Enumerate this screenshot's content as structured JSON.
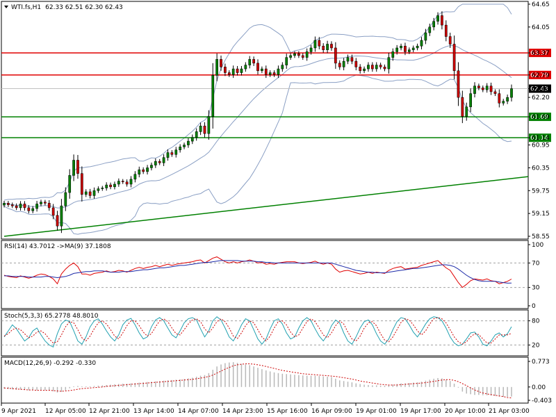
{
  "window": {
    "symbol_title": "WTI.fs,H1",
    "ohlc": "62.33 62.51 62.30 62.43"
  },
  "colors": {
    "resistance": "#e00000",
    "support": "#008000",
    "bollinger": "#8a9fc4",
    "candle_up": "#008000",
    "candle_down": "#cc0000",
    "rsi_line": "#e00000",
    "rsi_ma": "#1c2aa8",
    "stoch_main": "#20a0b0",
    "stoch_signal": "#cc0000",
    "macd_hist": "#b8b8b8",
    "macd_signal": "#cc0000",
    "current_price_tag": "#000000"
  },
  "chart_data": [
    {
      "type": "candlestick",
      "name": "main",
      "ylim": [
        58.55,
        64.65
      ],
      "y_ticks": [
        "64.65",
        "64.05",
        "63.37",
        "62.79",
        "62.43",
        "62.20",
        "61.69",
        "61.14",
        "60.95",
        "60.35",
        "59.75",
        "59.15",
        "58.55"
      ],
      "x_ticks": [
        "9 Apr 2021",
        "12 Apr 05:00",
        "12 Apr 21:00",
        "13 Apr 14:00",
        "14 Apr 07:00",
        "14 Apr 23:00",
        "15 Apr 16:00",
        "16 Apr 09:00",
        "19 Apr 01:00",
        "19 Apr 17:00",
        "20 Apr 10:00",
        "21 Apr 03:00"
      ],
      "current_price": 62.43,
      "current_price_label": "62.43",
      "horizontal_levels": [
        {
          "value": 63.37,
          "label": "63.37",
          "color": "resistance"
        },
        {
          "value": 62.79,
          "label": "62.79",
          "color": "resistance"
        },
        {
          "value": 61.69,
          "label": "61.69",
          "color": "support"
        },
        {
          "value": 61.14,
          "label": "61.14",
          "color": "support"
        }
      ],
      "trendline": {
        "from": [
          0,
          58.55
        ],
        "to": [
          147,
          60.35
        ],
        "color": "support"
      },
      "closes": [
        59.42,
        59.38,
        59.35,
        59.3,
        59.4,
        59.3,
        59.22,
        59.28,
        59.4,
        59.45,
        59.42,
        59.3,
        59.1,
        58.82,
        59.35,
        59.7,
        60.15,
        60.55,
        60.2,
        59.65,
        59.72,
        59.62,
        59.75,
        59.8,
        59.82,
        59.9,
        59.85,
        59.92,
        60.0,
        59.98,
        59.92,
        60.05,
        60.18,
        60.3,
        60.25,
        60.35,
        60.42,
        60.52,
        60.48,
        60.62,
        60.75,
        60.7,
        60.82,
        60.9,
        60.95,
        61.05,
        61.15,
        61.3,
        61.45,
        61.25,
        61.7,
        62.78,
        63.2,
        63.0,
        62.85,
        62.8,
        62.95,
        62.85,
        62.95,
        63.05,
        63.2,
        63.1,
        62.9,
        62.95,
        62.8,
        62.85,
        62.8,
        62.95,
        63.05,
        63.25,
        63.3,
        63.35,
        63.3,
        63.25,
        63.4,
        63.5,
        63.7,
        63.55,
        63.45,
        63.6,
        63.5,
        63.1,
        63.0,
        63.15,
        63.25,
        63.15,
        63.0,
        62.9,
        62.95,
        63.05,
        62.95,
        63.05,
        63.0,
        62.95,
        63.25,
        63.4,
        63.5,
        63.55,
        63.4,
        63.45,
        63.5,
        63.55,
        63.7,
        63.9,
        64.05,
        64.2,
        64.35,
        64.1,
        63.8,
        63.6,
        62.9,
        62.2,
        61.7,
        61.95,
        62.3,
        62.5,
        62.45,
        62.4,
        62.5,
        62.35,
        62.3,
        62.05,
        62.1,
        62.2,
        62.43
      ],
      "bollinger_upper_labels": [],
      "series_note_none": ""
    },
    {
      "type": "line",
      "name": "rsi",
      "title": "RSI(14) 43.7012  ->MA(9) 37.1808",
      "ylim": [
        0,
        100
      ],
      "y_ticks": [
        "100",
        "70",
        "30",
        "0"
      ],
      "levels": [
        70,
        30
      ],
      "values": [
        50,
        48,
        47,
        46,
        49,
        47,
        45,
        47,
        50,
        52,
        51,
        48,
        44,
        36,
        52,
        60,
        66,
        70,
        64,
        52,
        52,
        50,
        53,
        54,
        55,
        57,
        55,
        56,
        58,
        57,
        55,
        58,
        61,
        63,
        61,
        63,
        64,
        66,
        64,
        66,
        68,
        66,
        68,
        69,
        70,
        71,
        72,
        74,
        75,
        70,
        74,
        78,
        80,
        76,
        72,
        70,
        72,
        70,
        72,
        73,
        75,
        73,
        70,
        71,
        68,
        69,
        68,
        70,
        71,
        72,
        72,
        72,
        70,
        69,
        70,
        71,
        73,
        70,
        68,
        70,
        68,
        60,
        55,
        57,
        58,
        56,
        54,
        52,
        53,
        55,
        53,
        55,
        54,
        53,
        58,
        61,
        63,
        64,
        60,
        61,
        62,
        63,
        66,
        68,
        70,
        72,
        74,
        68,
        62,
        58,
        48,
        38,
        30,
        35,
        41,
        44,
        43,
        42,
        44,
        41,
        40,
        36,
        38,
        40,
        43.7
      ],
      "ma": [
        49,
        49,
        48,
        48,
        48,
        48,
        47,
        47,
        47,
        47,
        48,
        48,
        47,
        46,
        47,
        48,
        50,
        53,
        54,
        55,
        56,
        56,
        57,
        57,
        57,
        56,
        55,
        55,
        55,
        56,
        56,
        56,
        57,
        58,
        59,
        59,
        60,
        61,
        62,
        62,
        63,
        64,
        65,
        66,
        66,
        67,
        68,
        69,
        70,
        71,
        71,
        72,
        73,
        74,
        74,
        74,
        74,
        74,
        73,
        73,
        73,
        73,
        72,
        72,
        71,
        71,
        70,
        70,
        70,
        70,
        70,
        70,
        70,
        70,
        70,
        70,
        70,
        70,
        70,
        70,
        70,
        68,
        66,
        64,
        62,
        60,
        58,
        57,
        56,
        55,
        55,
        54,
        54,
        54,
        55,
        56,
        57,
        58,
        59,
        60,
        61,
        61,
        62,
        63,
        64,
        65,
        66,
        67,
        67,
        66,
        64,
        60,
        55,
        50,
        46,
        43,
        41,
        40,
        40,
        40,
        40,
        39,
        38,
        37,
        37.2
      ]
    },
    {
      "type": "line",
      "name": "stochastic",
      "title": "Stoch(5,3,3) 65.2778 48.8010",
      "ylim": [
        0,
        100
      ],
      "y_ticks": [
        "80",
        "20"
      ],
      "levels": [
        80,
        20
      ],
      "main": [
        40,
        55,
        70,
        60,
        45,
        30,
        38,
        55,
        62,
        45,
        30,
        20,
        15,
        48,
        72,
        82,
        78,
        55,
        30,
        22,
        40,
        65,
        80,
        85,
        72,
        55,
        40,
        30,
        45,
        70,
        82,
        86,
        70,
        50,
        35,
        40,
        65,
        82,
        88,
        80,
        62,
        45,
        38,
        55,
        75,
        85,
        88,
        82,
        60,
        40,
        55,
        80,
        90,
        82,
        62,
        40,
        30,
        48,
        70,
        85,
        80,
        58,
        35,
        22,
        35,
        60,
        80,
        85,
        72,
        50,
        35,
        40,
        62,
        80,
        88,
        80,
        60,
        42,
        30,
        45,
        68,
        82,
        75,
        50,
        30,
        22,
        40,
        62,
        78,
        82,
        70,
        48,
        30,
        22,
        35,
        58,
        78,
        88,
        85,
        70,
        52,
        40,
        55,
        72,
        85,
        90,
        88,
        80,
        62,
        40,
        25,
        18,
        22,
        35,
        50,
        52,
        40,
        22,
        18,
        30,
        45,
        50,
        40,
        48,
        65.3
      ],
      "signal": [
        42,
        48,
        58,
        62,
        58,
        48,
        38,
        42,
        52,
        55,
        48,
        35,
        25,
        28,
        45,
        65,
        78,
        75,
        58,
        38,
        30,
        42,
        60,
        75,
        80,
        72,
        58,
        42,
        35,
        50,
        68,
        80,
        80,
        68,
        52,
        42,
        48,
        65,
        80,
        85,
        78,
        62,
        48,
        45,
        58,
        72,
        82,
        85,
        78,
        60,
        50,
        62,
        78,
        85,
        78,
        62,
        42,
        36,
        50,
        68,
        80,
        75,
        58,
        40,
        30,
        42,
        62,
        78,
        80,
        70,
        52,
        40,
        45,
        62,
        78,
        85,
        78,
        62,
        45,
        38,
        50,
        68,
        80,
        72,
        52,
        35,
        30,
        42,
        62,
        75,
        78,
        68,
        48,
        32,
        28,
        40,
        58,
        76,
        85,
        82,
        70,
        55,
        45,
        55,
        72,
        85,
        88,
        85,
        75,
        58,
        40,
        28,
        22,
        28,
        40,
        48,
        46,
        35,
        25,
        25,
        35,
        45,
        45,
        45,
        48.8
      ]
    },
    {
      "type": "bar",
      "name": "macd",
      "title": "MACD(12,26,9) -0.292 -0.330",
      "ylim": [
        -0.403,
        0.773
      ],
      "y_ticks": [
        "0.773",
        "0.00",
        "-0.403"
      ],
      "histogram": [
        -0.05,
        -0.06,
        -0.07,
        -0.08,
        -0.08,
        -0.09,
        -0.1,
        -0.1,
        -0.1,
        -0.1,
        -0.1,
        -0.11,
        -0.13,
        -0.17,
        -0.15,
        -0.1,
        -0.04,
        0.02,
        0.03,
        0.02,
        0.02,
        0.02,
        0.03,
        0.04,
        0.05,
        0.06,
        0.07,
        0.08,
        0.09,
        0.1,
        0.1,
        0.11,
        0.12,
        0.13,
        0.14,
        0.15,
        0.16,
        0.17,
        0.18,
        0.19,
        0.2,
        0.21,
        0.22,
        0.23,
        0.24,
        0.26,
        0.28,
        0.31,
        0.34,
        0.36,
        0.42,
        0.52,
        0.62,
        0.68,
        0.72,
        0.74,
        0.75,
        0.73,
        0.7,
        0.68,
        0.66,
        0.62,
        0.58,
        0.54,
        0.5,
        0.47,
        0.44,
        0.42,
        0.4,
        0.39,
        0.38,
        0.37,
        0.36,
        0.35,
        0.34,
        0.34,
        0.34,
        0.33,
        0.32,
        0.31,
        0.3,
        0.25,
        0.2,
        0.18,
        0.16,
        0.14,
        0.11,
        0.09,
        0.07,
        0.06,
        0.05,
        0.05,
        0.04,
        0.04,
        0.05,
        0.07,
        0.09,
        0.11,
        0.11,
        0.12,
        0.13,
        0.14,
        0.16,
        0.19,
        0.22,
        0.25,
        0.27,
        0.26,
        0.22,
        0.18,
        0.1,
        -0.02,
        -0.14,
        -0.2,
        -0.22,
        -0.24,
        -0.24,
        -0.25,
        -0.25,
        -0.26,
        -0.27,
        -0.29,
        -0.3,
        -0.3,
        -0.29
      ],
      "signal": [
        -0.03,
        -0.04,
        -0.05,
        -0.06,
        -0.07,
        -0.08,
        -0.09,
        -0.09,
        -0.1,
        -0.1,
        -0.1,
        -0.1,
        -0.11,
        -0.12,
        -0.13,
        -0.12,
        -0.11,
        -0.09,
        -0.07,
        -0.05,
        -0.04,
        -0.03,
        -0.02,
        -0.01,
        0.0,
        0.02,
        0.03,
        0.04,
        0.05,
        0.06,
        0.07,
        0.08,
        0.09,
        0.1,
        0.11,
        0.12,
        0.13,
        0.14,
        0.15,
        0.16,
        0.17,
        0.18,
        0.19,
        0.2,
        0.21,
        0.22,
        0.23,
        0.25,
        0.27,
        0.29,
        0.32,
        0.36,
        0.42,
        0.48,
        0.54,
        0.59,
        0.64,
        0.67,
        0.69,
        0.7,
        0.7,
        0.69,
        0.67,
        0.65,
        0.62,
        0.59,
        0.56,
        0.53,
        0.5,
        0.48,
        0.46,
        0.44,
        0.42,
        0.4,
        0.39,
        0.38,
        0.37,
        0.36,
        0.35,
        0.34,
        0.33,
        0.32,
        0.3,
        0.28,
        0.26,
        0.24,
        0.21,
        0.18,
        0.16,
        0.14,
        0.12,
        0.1,
        0.08,
        0.07,
        0.06,
        0.06,
        0.06,
        0.07,
        0.08,
        0.09,
        0.1,
        0.11,
        0.12,
        0.13,
        0.15,
        0.17,
        0.19,
        0.21,
        0.22,
        0.22,
        0.2,
        0.16,
        0.1,
        0.04,
        -0.03,
        -0.09,
        -0.14,
        -0.18,
        -0.21,
        -0.23,
        -0.25,
        -0.27,
        -0.29,
        -0.32,
        -0.33
      ]
    }
  ]
}
